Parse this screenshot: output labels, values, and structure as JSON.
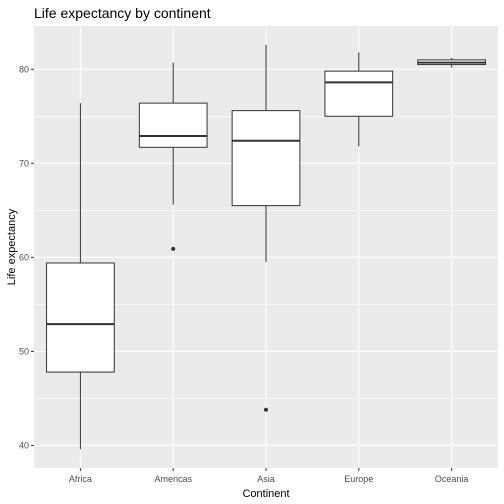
{
  "chart_data": {
    "type": "boxplot",
    "title": "Life expectancy by continent",
    "xlabel": "Continent",
    "ylabel": "Life expectancy",
    "categories": [
      "Africa",
      "Americas",
      "Asia",
      "Europe",
      "Oceania"
    ],
    "boxes": [
      {
        "category": "Africa",
        "lower_whisker": 39.6,
        "q1": 47.8,
        "median": 52.9,
        "q3": 59.4,
        "upper_whisker": 76.4,
        "outliers": []
      },
      {
        "category": "Americas",
        "lower_whisker": 65.6,
        "q1": 71.7,
        "median": 72.9,
        "q3": 76.4,
        "upper_whisker": 80.7,
        "outliers": [
          60.9
        ]
      },
      {
        "category": "Asia",
        "lower_whisker": 59.5,
        "q1": 65.5,
        "median": 72.4,
        "q3": 75.6,
        "upper_whisker": 82.6,
        "outliers": [
          43.8
        ]
      },
      {
        "category": "Europe",
        "lower_whisker": 71.8,
        "q1": 75.0,
        "median": 78.6,
        "q3": 79.8,
        "upper_whisker": 81.8,
        "outliers": []
      },
      {
        "category": "Oceania",
        "lower_whisker": 80.2,
        "q1": 80.5,
        "median": 80.7,
        "q3": 81.0,
        "upper_whisker": 81.2,
        "outliers": []
      }
    ],
    "y_ticks": [
      40,
      50,
      60,
      70,
      80
    ],
    "ylim": [
      37.6,
      84.6
    ],
    "grid": true,
    "legend": "none",
    "colors": {
      "panel_background": "#ebebeb",
      "grid_major": "#ffffff",
      "box_fill": "#ffffff",
      "box_stroke": "#333333",
      "tick_text": "#4d4d4d"
    }
  }
}
